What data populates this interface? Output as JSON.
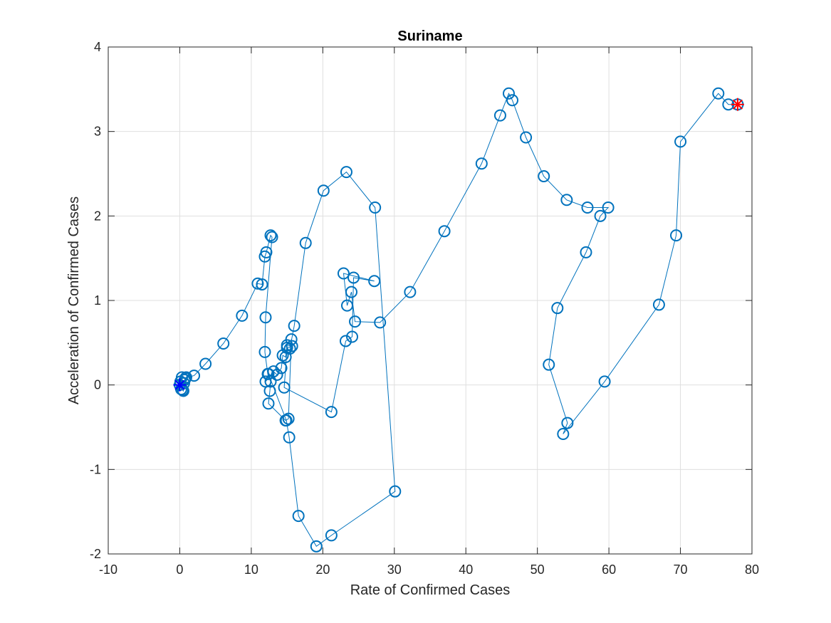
{
  "chart_data": {
    "type": "line",
    "title": "Suriname",
    "xlabel": "Rate of Confirmed Cases",
    "ylabel": "Acceleration of Confirmed Cases",
    "xlim": [
      -10,
      80
    ],
    "ylim": [
      -2,
      4
    ],
    "xticks": [
      -10,
      0,
      10,
      20,
      30,
      40,
      50,
      60,
      70,
      80
    ],
    "yticks": [
      -2,
      -1,
      0,
      1,
      2,
      3,
      4
    ],
    "xtick_labels": [
      "-10",
      "0",
      "10",
      "20",
      "30",
      "40",
      "50",
      "60",
      "70",
      "80"
    ],
    "ytick_labels": [
      "-2",
      "-1",
      "0",
      "1",
      "2",
      "3",
      "4"
    ],
    "grid": true,
    "marker": "circle",
    "series_color": "#0072BD",
    "start_marker_color": "#0000FF",
    "end_marker_color": "#FF0000",
    "x": [
      0,
      0.1,
      0.3,
      0.2,
      0.4,
      0.5,
      0.6,
      0.7,
      0.8,
      0.9,
      2.0,
      3.6,
      6.1,
      8.7,
      10.9,
      11.5,
      11.9,
      12.1,
      12.7,
      12.9,
      12.0,
      11.9,
      12.3,
      12.7,
      12.6,
      12.4,
      14.8,
      15.2,
      15.6,
      15.4,
      16.0,
      17.6,
      20.1,
      23.3,
      27.3,
      30.1,
      21.2,
      19.1,
      16.6,
      15.3,
      14.9,
      12.4,
      12.0,
      13.1,
      13.6,
      14.2,
      14.4,
      14.8,
      15.0,
      15.7,
      15.0,
      14.6,
      21.2,
      23.2,
      24.1,
      24.3,
      27.2,
      22.9,
      23.4,
      24.0,
      24.5,
      28.0,
      32.2,
      37.0,
      42.2,
      44.8,
      46.0,
      46.5,
      48.4,
      50.9,
      54.1,
      57.0,
      59.9,
      58.8,
      56.8,
      52.8,
      51.6,
      54.2,
      53.6,
      59.4,
      67.0,
      69.4,
      70.0,
      75.3,
      76.7,
      78.0
    ],
    "y": [
      0,
      0.04,
      0.09,
      -0.05,
      -0.06,
      -0.07,
      0.02,
      0.06,
      0.08,
      0.09,
      0.11,
      0.25,
      0.49,
      0.82,
      1.2,
      1.19,
      1.52,
      1.57,
      1.77,
      1.75,
      0.8,
      0.39,
      0.13,
      0.04,
      -0.07,
      -0.22,
      -0.42,
      -0.4,
      0.54,
      0.43,
      0.7,
      1.68,
      2.3,
      2.52,
      2.1,
      -1.26,
      -1.78,
      -1.91,
      -1.55,
      -0.62,
      -0.42,
      0.13,
      0.04,
      0.16,
      0.12,
      0.2,
      0.35,
      0.33,
      0.47,
      0.46,
      0.44,
      -0.03,
      -0.32,
      0.52,
      0.57,
      1.27,
      1.23,
      1.32,
      0.94,
      1.1,
      0.75,
      0.74,
      1.1,
      1.82,
      2.62,
      3.19,
      3.45,
      3.37,
      2.93,
      2.47,
      2.19,
      2.1,
      2.1,
      2.0,
      1.57,
      0.91,
      0.24,
      -0.45,
      -0.58,
      0.04,
      0.95,
      1.77,
      2.88,
      3.45,
      3.32,
      3.32
    ]
  }
}
